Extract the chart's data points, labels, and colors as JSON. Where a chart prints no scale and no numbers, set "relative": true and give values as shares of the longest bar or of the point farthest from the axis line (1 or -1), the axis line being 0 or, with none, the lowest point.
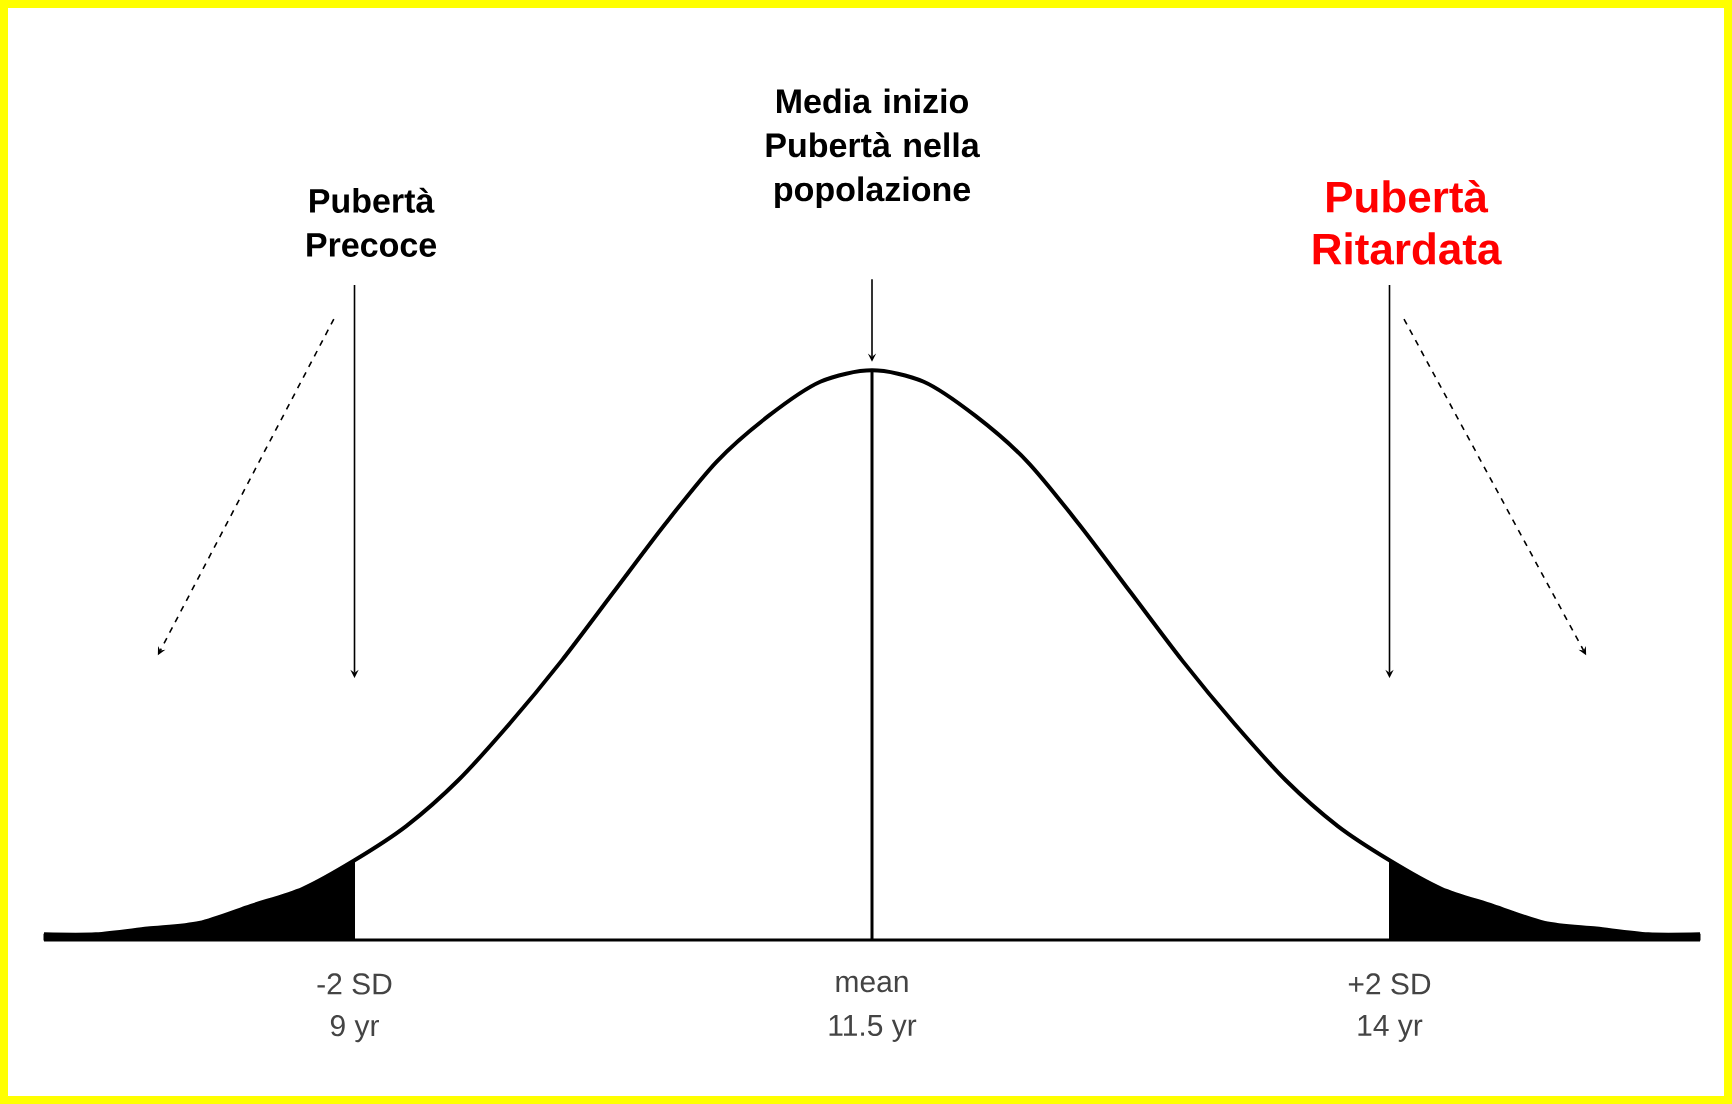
{
  "chart_data": {
    "type": "line",
    "relative": true,
    "xlim": [
      7.5,
      15.5
    ],
    "xticks": [
      {
        "value": 9,
        "label": "9 yr"
      },
      {
        "value": 11.5,
        "label": "11.5 yr"
      },
      {
        "value": 14,
        "label": "14 yr"
      }
    ],
    "series": [
      {
        "color": "#000000",
        "x": [
          7.5,
          7.75,
          8,
          8.25,
          8.5,
          8.75,
          9,
          9.25,
          9.5,
          9.75,
          10,
          10.25,
          10.5,
          10.75,
          11,
          11.25,
          11.5,
          11.75,
          12,
          12.25,
          12.5,
          12.75,
          13,
          13.25,
          13.5,
          13.75,
          14,
          14.25,
          14.5,
          14.75,
          15,
          15.25,
          15.5
        ],
        "values": [
          0.01,
          0.01,
          0.02,
          0.03,
          0.06,
          0.09,
          0.14,
          0.2,
          0.28,
          0.38,
          0.49,
          0.61,
          0.73,
          0.84,
          0.92,
          0.98,
          1,
          0.98,
          0.92,
          0.84,
          0.73,
          0.61,
          0.49,
          0.38,
          0.28,
          0.2,
          0.14,
          0.09,
          0.06,
          0.03,
          0.02,
          0.01,
          0.01
        ]
      },
      {
        "type": "area",
        "color": "#000000",
        "x": [
          7.5,
          7.75,
          8,
          8.25,
          8.5,
          8.75,
          9
        ],
        "values": [
          0.01,
          0.01,
          0.02,
          0.03,
          0.06,
          0.09,
          0.14
        ]
      },
      {
        "type": "area",
        "color": "#000000",
        "x": [
          14,
          14.25,
          14.5,
          14.75,
          15,
          15.25,
          15.5
        ],
        "values": [
          0.14,
          0.09,
          0.06,
          0.03,
          0.02,
          0.01,
          0.01
        ]
      }
    ],
    "ref_lines": [
      {
        "axis": "x",
        "value": 11.5
      }
    ],
    "annotations": [
      "Pubertà Precoce",
      "Media inizio Pubertà nella popolazione",
      "Pubertà Ritardata",
      "-2 SD",
      "mean",
      "+2 SD"
    ]
  }
}
